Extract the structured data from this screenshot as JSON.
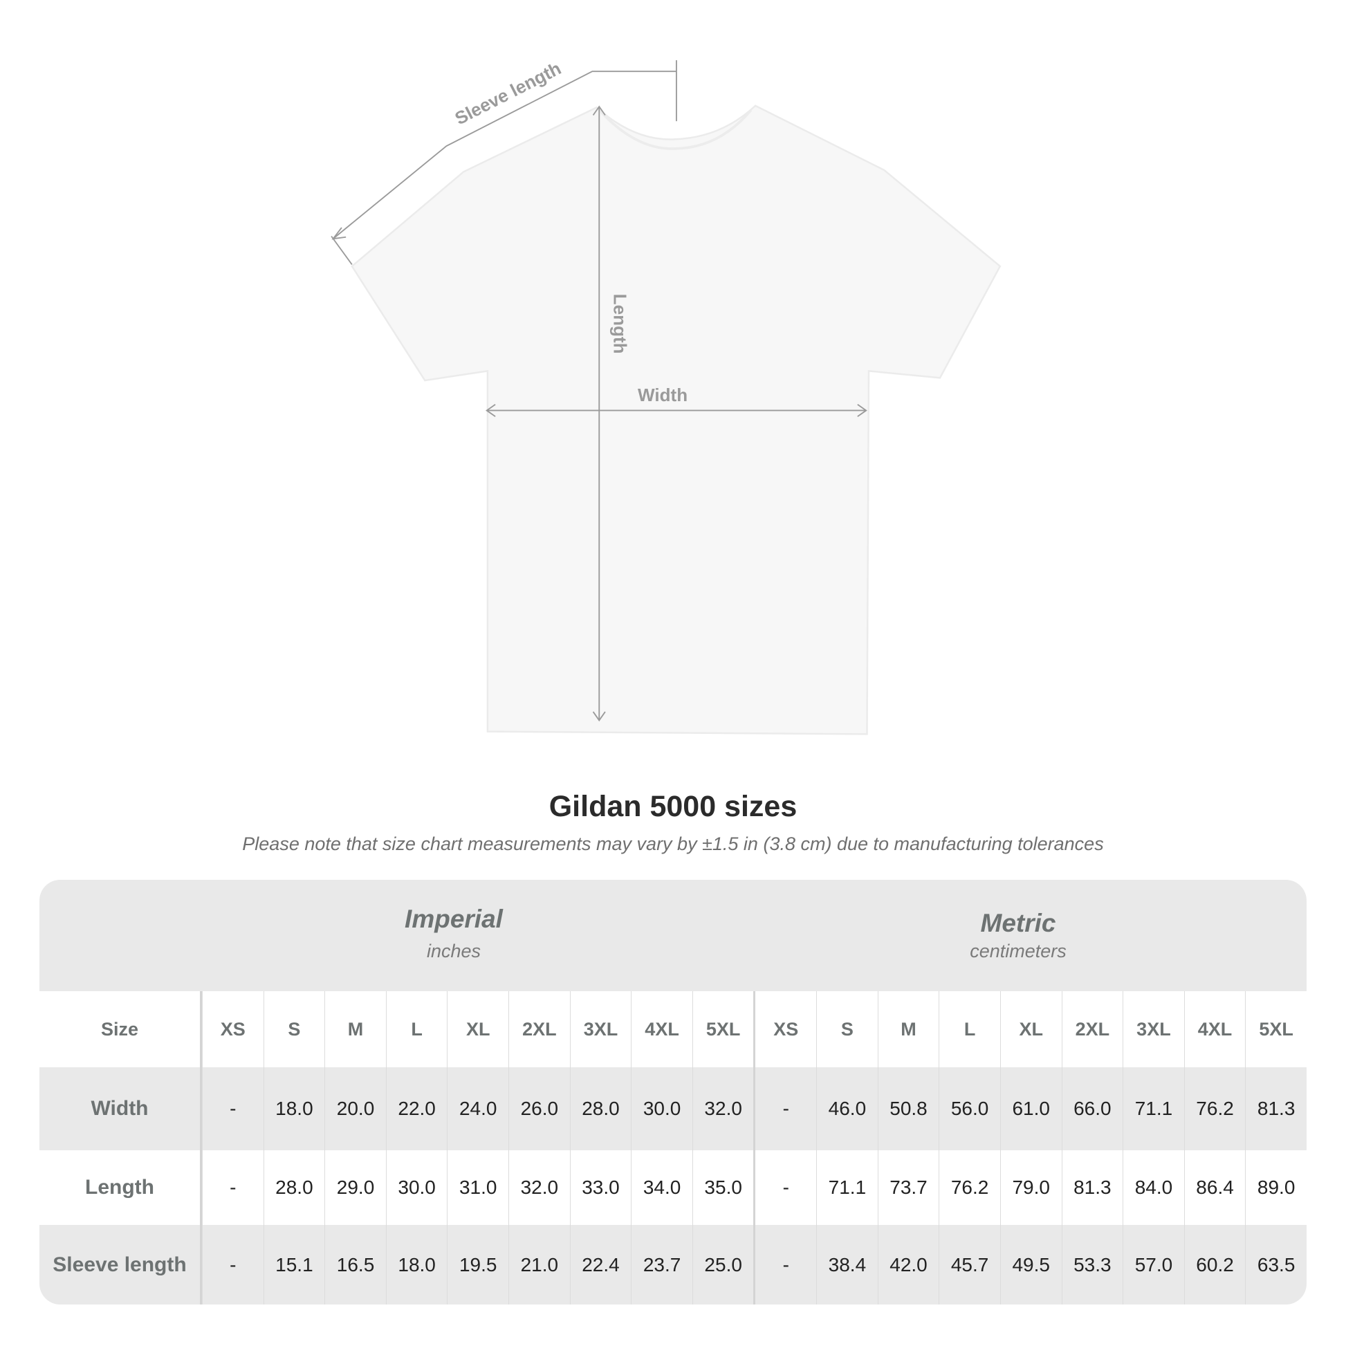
{
  "diagram": {
    "labels": {
      "sleeve": "Sleeve length",
      "length": "Length",
      "width": "Width"
    },
    "colors": {
      "shirt": "#f7f7f7",
      "measure_lines": "#9a9a9a"
    }
  },
  "title": "Gildan 5000 sizes",
  "subtitle": "Please note that size chart measurements may vary by ±1.5 in (3.8 cm) due to manufacturing tolerances",
  "table": {
    "imperial": {
      "name": "Imperial",
      "unit": "inches"
    },
    "metric": {
      "name": "Metric",
      "unit": "centimeters"
    },
    "size_label": "Size",
    "sizes": [
      "XS",
      "S",
      "M",
      "L",
      "XL",
      "2XL",
      "3XL",
      "4XL",
      "5XL"
    ],
    "rows": [
      {
        "label": "Width",
        "imperial": [
          "-",
          "18.0",
          "20.0",
          "22.0",
          "24.0",
          "26.0",
          "28.0",
          "30.0",
          "32.0"
        ],
        "metric": [
          "-",
          "46.0",
          "50.8",
          "56.0",
          "61.0",
          "66.0",
          "71.1",
          "76.2",
          "81.3"
        ]
      },
      {
        "label": "Length",
        "imperial": [
          "-",
          "28.0",
          "29.0",
          "30.0",
          "31.0",
          "32.0",
          "33.0",
          "34.0",
          "35.0"
        ],
        "metric": [
          "-",
          "71.1",
          "73.7",
          "76.2",
          "79.0",
          "81.3",
          "84.0",
          "86.4",
          "89.0"
        ]
      },
      {
        "label": "Sleeve length",
        "imperial": [
          "-",
          "15.1",
          "16.5",
          "18.0",
          "19.5",
          "21.0",
          "22.4",
          "23.7",
          "25.0"
        ],
        "metric": [
          "-",
          "38.4",
          "42.0",
          "45.7",
          "49.5",
          "53.3",
          "57.0",
          "60.2",
          "63.5"
        ]
      }
    ]
  }
}
